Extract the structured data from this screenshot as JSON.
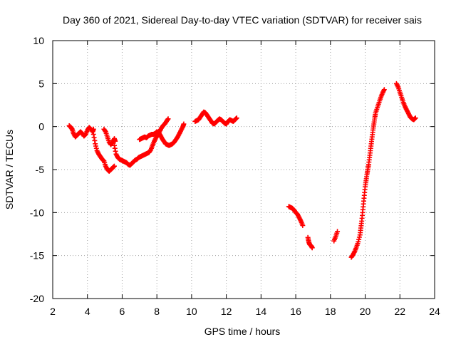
{
  "chart_data": {
    "type": "scatter",
    "title": "Day 360 of 2021, Sidereal Day-to-day VTEC variation (SDTVAR) for receiver sais",
    "xlabel": "GPS time / hours",
    "ylabel": "SDTVAR / TECUs",
    "xlim": [
      2,
      24
    ],
    "ylim": [
      -20,
      10
    ],
    "xticks": [
      2,
      4,
      6,
      8,
      10,
      12,
      14,
      16,
      18,
      20,
      22,
      24
    ],
    "yticks": [
      -20,
      -15,
      -10,
      -5,
      0,
      5,
      10
    ],
    "xtick_labels": [
      "2",
      "4",
      "6",
      "8",
      "10",
      "12",
      "14",
      "16",
      "18",
      "20",
      "22",
      "24"
    ],
    "ytick_labels": [
      "-20",
      "-15",
      "-10",
      "-5",
      "0",
      "5",
      "10"
    ],
    "grid": true,
    "marker": "plus",
    "color": "#ff0000",
    "series": [
      {
        "name": "SDTVAR",
        "segments": [
          [
            [
              2.95,
              0.1
            ],
            [
              3.05,
              -0.1
            ],
            [
              3.12,
              -0.3
            ],
            [
              3.2,
              -0.8
            ],
            [
              3.3,
              -1.2
            ],
            [
              3.4,
              -1.0
            ],
            [
              3.5,
              -0.8
            ],
            [
              3.6,
              -0.6
            ],
            [
              3.7,
              -0.8
            ],
            [
              3.8,
              -1.1
            ],
            [
              3.9,
              -0.9
            ],
            [
              4.0,
              -0.4
            ],
            [
              4.1,
              -0.1
            ],
            [
              4.2,
              -0.3
            ],
            [
              4.3,
              -0.6
            ],
            [
              4.35,
              -0.3
            ]
          ],
          [
            [
              4.35,
              -0.9
            ],
            [
              4.45,
              -2.0
            ],
            [
              4.55,
              -2.8
            ],
            [
              4.65,
              -3.2
            ],
            [
              4.75,
              -3.5
            ],
            [
              4.85,
              -3.8
            ],
            [
              4.95,
              -4.0
            ],
            [
              5.05,
              -4.6
            ],
            [
              5.15,
              -5.0
            ],
            [
              5.25,
              -5.2
            ],
            [
              5.35,
              -5.0
            ],
            [
              5.45,
              -4.8
            ],
            [
              5.55,
              -4.6
            ]
          ],
          [
            [
              4.95,
              -0.3
            ],
            [
              5.05,
              -0.6
            ],
            [
              5.15,
              -1.2
            ],
            [
              5.25,
              -1.8
            ],
            [
              5.35,
              -2.1
            ],
            [
              5.45,
              -1.8
            ],
            [
              5.55,
              -1.4
            ],
            [
              5.6,
              -1.7
            ]
          ],
          [
            [
              5.55,
              -2.2
            ],
            [
              5.65,
              -3.2
            ],
            [
              5.75,
              -3.6
            ],
            [
              5.85,
              -3.8
            ],
            [
              5.95,
              -3.9
            ],
            [
              6.05,
              -4.0
            ],
            [
              6.15,
              -4.1
            ],
            [
              6.25,
              -4.2
            ],
            [
              6.35,
              -4.4
            ],
            [
              6.45,
              -4.5
            ],
            [
              6.55,
              -4.3
            ],
            [
              6.65,
              -4.1
            ],
            [
              6.75,
              -3.9
            ],
            [
              6.85,
              -3.8
            ],
            [
              6.95,
              -3.6
            ],
            [
              7.05,
              -3.5
            ],
            [
              7.15,
              -3.4
            ],
            [
              7.25,
              -3.3
            ],
            [
              7.35,
              -3.2
            ],
            [
              7.45,
              -3.1
            ],
            [
              7.55,
              -3.0
            ],
            [
              7.65,
              -2.7
            ],
            [
              7.75,
              -2.2
            ],
            [
              7.85,
              -1.7
            ],
            [
              7.95,
              -1.3
            ],
            [
              8.05,
              -1.0
            ],
            [
              8.15,
              -0.6
            ],
            [
              8.25,
              -0.2
            ],
            [
              8.35,
              0.1
            ],
            [
              8.45,
              0.3
            ],
            [
              8.55,
              0.6
            ],
            [
              8.65,
              0.9
            ]
          ],
          [
            [
              7.0,
              -1.5
            ],
            [
              7.1,
              -1.4
            ],
            [
              7.2,
              -1.3
            ],
            [
              7.3,
              -1.2
            ],
            [
              7.4,
              -1.3
            ],
            [
              7.5,
              -1.1
            ],
            [
              7.6,
              -1.0
            ],
            [
              7.7,
              -0.9
            ],
            [
              7.8,
              -0.9
            ],
            [
              7.9,
              -0.8
            ],
            [
              8.0,
              -0.6
            ],
            [
              8.1,
              -0.7
            ],
            [
              8.2,
              -1.0
            ],
            [
              8.3,
              -1.4
            ],
            [
              8.4,
              -1.7
            ],
            [
              8.5,
              -2.0
            ],
            [
              8.6,
              -2.1
            ],
            [
              8.7,
              -2.2
            ],
            [
              8.8,
              -2.1
            ],
            [
              8.9,
              -2.0
            ],
            [
              9.0,
              -1.8
            ],
            [
              9.1,
              -1.5
            ],
            [
              9.2,
              -1.2
            ],
            [
              9.3,
              -0.8
            ],
            [
              9.4,
              -0.4
            ],
            [
              9.5,
              0.0
            ],
            [
              9.55,
              0.3
            ]
          ],
          [
            [
              10.2,
              0.6
            ],
            [
              10.3,
              0.7
            ],
            [
              10.4,
              0.8
            ],
            [
              10.5,
              1.1
            ],
            [
              10.6,
              1.4
            ],
            [
              10.7,
              1.7
            ],
            [
              10.8,
              1.6
            ],
            [
              10.9,
              1.3
            ],
            [
              11.0,
              1.0
            ],
            [
              11.1,
              0.7
            ],
            [
              11.2,
              0.4
            ],
            [
              11.3,
              0.3
            ],
            [
              11.4,
              0.5
            ],
            [
              11.5,
              0.7
            ],
            [
              11.6,
              0.9
            ],
            [
              11.7,
              0.8
            ],
            [
              11.8,
              0.6
            ],
            [
              11.9,
              0.4
            ],
            [
              12.0,
              0.3
            ],
            [
              12.1,
              0.6
            ],
            [
              12.2,
              0.8
            ],
            [
              12.3,
              0.7
            ],
            [
              12.4,
              0.6
            ],
            [
              12.5,
              0.8
            ],
            [
              12.6,
              1.0
            ]
          ],
          [
            [
              15.6,
              -9.3
            ],
            [
              15.7,
              -9.4
            ],
            [
              15.8,
              -9.5
            ],
            [
              15.9,
              -9.7
            ],
            [
              16.0,
              -10.0
            ],
            [
              16.1,
              -10.2
            ],
            [
              16.2,
              -10.6
            ],
            [
              16.3,
              -11.0
            ],
            [
              16.4,
              -11.5
            ]
          ],
          [
            [
              16.7,
              -12.9
            ],
            [
              16.75,
              -13.4
            ],
            [
              16.8,
              -13.7
            ],
            [
              16.9,
              -13.9
            ],
            [
              16.95,
              -14.1
            ]
          ],
          [
            [
              18.2,
              -13.3
            ],
            [
              18.3,
              -12.8
            ],
            [
              18.4,
              -12.2
            ]
          ],
          [
            [
              19.2,
              -15.2
            ],
            [
              19.3,
              -14.9
            ],
            [
              19.4,
              -14.5
            ],
            [
              19.5,
              -14.0
            ],
            [
              19.6,
              -13.4
            ],
            [
              19.7,
              -12.6
            ],
            [
              19.75,
              -11.8
            ],
            [
              19.8,
              -11.0
            ],
            [
              19.85,
              -10.0
            ],
            [
              19.9,
              -9.0
            ],
            [
              19.95,
              -8.0
            ],
            [
              20.0,
              -7.0
            ],
            [
              20.05,
              -6.3
            ],
            [
              20.1,
              -5.6
            ],
            [
              20.15,
              -5.0
            ],
            [
              20.2,
              -4.4
            ],
            [
              20.25,
              -3.6
            ],
            [
              20.3,
              -2.8
            ],
            [
              20.35,
              -2.0
            ],
            [
              20.4,
              -1.2
            ],
            [
              20.45,
              -0.4
            ],
            [
              20.5,
              0.3
            ],
            [
              20.55,
              1.0
            ],
            [
              20.6,
              1.6
            ],
            [
              20.7,
              2.2
            ],
            [
              20.8,
              2.8
            ],
            [
              20.9,
              3.4
            ],
            [
              21.0,
              3.9
            ],
            [
              21.1,
              4.3
            ]
          ],
          [
            [
              21.8,
              5.0
            ],
            [
              21.9,
              4.6
            ],
            [
              22.0,
              4.0
            ],
            [
              22.1,
              3.4
            ],
            [
              22.2,
              2.8
            ],
            [
              22.3,
              2.3
            ],
            [
              22.4,
              1.9
            ],
            [
              22.5,
              1.5
            ],
            [
              22.6,
              1.1
            ],
            [
              22.7,
              0.9
            ],
            [
              22.8,
              0.8
            ],
            [
              22.9,
              1.0
            ]
          ]
        ]
      }
    ]
  }
}
